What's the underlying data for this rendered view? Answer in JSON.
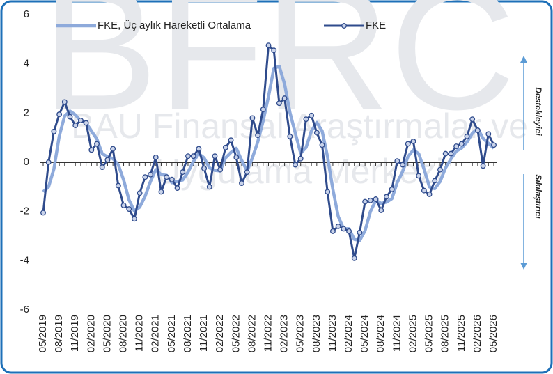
{
  "watermark": {
    "logo": "BFRC",
    "line1": "BAU Finansal Araştırmalar ve",
    "line2": "Uygulama Merkezi"
  },
  "annotations": {
    "upper": "Destekleyici",
    "lower": "Sıkılaştırıcı"
  },
  "chart_data": {
    "type": "line",
    "categories": [
      "05/2019",
      null,
      null,
      "08/2019",
      null,
      null,
      "11/2019",
      null,
      null,
      "02/2020",
      null,
      null,
      "05/2020",
      null,
      null,
      "08/2020",
      null,
      null,
      "11/2020",
      null,
      null,
      "02/2021",
      null,
      null,
      "05/2021",
      null,
      null,
      "08/2021",
      null,
      null,
      "11/2021",
      null,
      null,
      "02/2022",
      null,
      null,
      "05/2022",
      null,
      null,
      "08/2022",
      null,
      null,
      "11/2022",
      null,
      null,
      "02/2023",
      null,
      null,
      "05/2023",
      null,
      null,
      "08/2023",
      null,
      null,
      "11/2023",
      null,
      null,
      "02/2024",
      null,
      null,
      "05/2024",
      null,
      null,
      "08/2024",
      null,
      null,
      "11/2024",
      null,
      null,
      "02/2025",
      null,
      null,
      "05/2025",
      null,
      null,
      "08/2025",
      null,
      null,
      "11/2025",
      null,
      null,
      "02/2026",
      null,
      null,
      "05/2026"
    ],
    "series": [
      {
        "name": "FKE, Üç aylık Hareketli Ortalama",
        "color": "#8eaadb",
        "values": [
          -1.2,
          -1.0,
          -0.27,
          1.07,
          1.88,
          2.08,
          1.93,
          1.68,
          1.6,
          1.27,
          0.95,
          0.35,
          0.22,
          0.15,
          -0.1,
          -0.72,
          -1.53,
          -1.98,
          -1.82,
          -1.38,
          -0.78,
          -0.3,
          -0.5,
          -0.53,
          -0.83,
          -0.78,
          -0.72,
          -0.4,
          0.03,
          0.35,
          0.18,
          -0.23,
          -0.33,
          -0.35,
          0.18,
          0.4,
          0.57,
          0.08,
          -0.35,
          0.18,
          0.83,
          1.68,
          2.67,
          3.82,
          3.9,
          3.18,
          2.02,
          1.18,
          0.37,
          0.6,
          1.27,
          1.62,
          1.27,
          0.23,
          -1.1,
          -2.2,
          -2.7,
          -2.7,
          -3.13,
          -3.18,
          -2.78,
          -2.0,
          -1.55,
          -1.67,
          -1.62,
          -1.48,
          -0.82,
          -0.38,
          0.23,
          0.5,
          0.35,
          -0.28,
          -1.0,
          -1.07,
          -0.78,
          -0.23,
          0.13,
          0.45,
          0.58,
          0.82,
          1.18,
          1.37,
          0.97,
          0.77,
          0.57
        ]
      },
      {
        "name": "FKE",
        "color": "#2f4b8c",
        "marker": "circle",
        "values": [
          -2.05,
          0.0,
          1.25,
          1.95,
          2.45,
          1.85,
          1.5,
          1.7,
          1.6,
          0.5,
          0.75,
          -0.2,
          0.1,
          0.55,
          -0.95,
          -1.75,
          -1.9,
          -2.3,
          -1.25,
          -0.6,
          -0.5,
          0.2,
          -1.2,
          -0.6,
          -0.7,
          -1.05,
          -0.4,
          0.25,
          0.25,
          0.55,
          -0.25,
          -1.0,
          0.25,
          -0.3,
          0.6,
          0.9,
          0.2,
          -0.85,
          -0.4,
          1.8,
          1.1,
          2.15,
          4.75,
          4.55,
          2.4,
          2.6,
          1.05,
          -0.1,
          0.15,
          1.75,
          1.9,
          1.2,
          0.7,
          -1.2,
          -2.8,
          -2.6,
          -2.7,
          -2.8,
          -3.9,
          -2.85,
          -1.6,
          -1.55,
          -1.5,
          -1.95,
          -1.4,
          -1.1,
          0.05,
          -0.1,
          0.75,
          0.85,
          -0.55,
          -1.15,
          -1.3,
          -0.75,
          -0.3,
          0.35,
          0.35,
          0.65,
          0.75,
          1.05,
          1.75,
          1.3,
          -0.15,
          1.15,
          0.7
        ]
      }
    ],
    "ylim": [
      -6,
      6
    ],
    "yticks": [
      -6,
      -4,
      -2,
      0,
      2,
      4,
      6
    ],
    "grid": false,
    "legend": "top"
  }
}
